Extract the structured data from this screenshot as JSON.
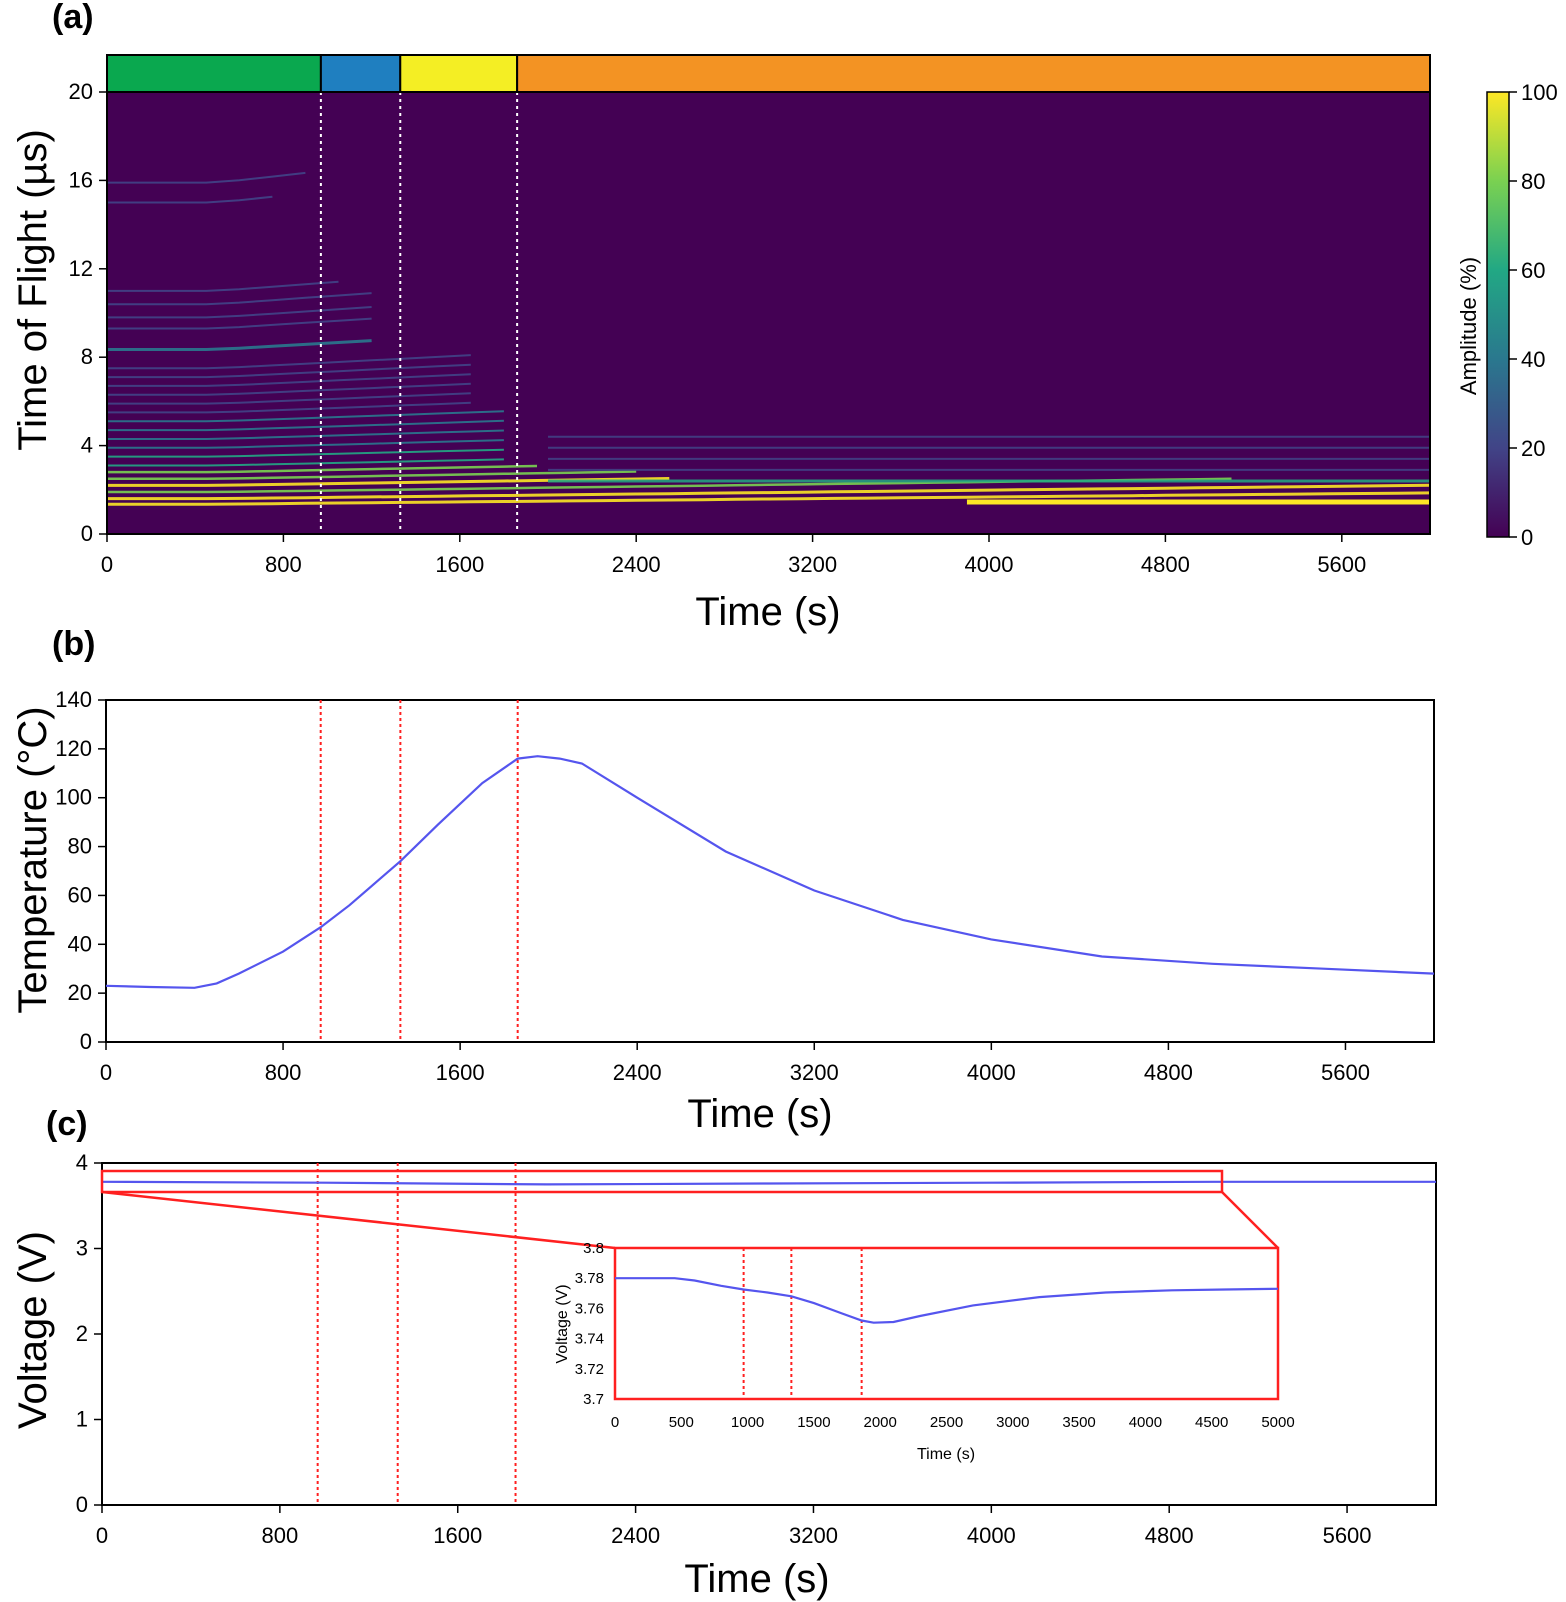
{
  "colors": {
    "background": "#440154",
    "line": "#5555ee",
    "marker_a": "#ffffff",
    "marker_bc": "#ff2020",
    "inset_frame": "#ff2020",
    "phase_bar": [
      "#0aa84f",
      "#1f7fc0",
      "#f4ee24",
      "#f39323"
    ]
  },
  "markers": [
    970,
    1330,
    1860
  ],
  "panel_a": {
    "label": "(a)",
    "xlabel": "Time (s)",
    "ylabel": "Time of Flight (µs)",
    "colorbar_label": "Amplitude (%)",
    "colorbar_ticks": [
      "0",
      "20",
      "40",
      "60",
      "80",
      "100"
    ],
    "colormap": "viridis",
    "xticks": [
      "0",
      "800",
      "1600",
      "2400",
      "3200",
      "4000",
      "4800",
      "5600"
    ],
    "yticks": [
      "0",
      "4",
      "8",
      "12",
      "16",
      "20"
    ]
  },
  "panel_b": {
    "label": "(b)",
    "xlabel": "Time (s)",
    "ylabel": "Temperature (°C)",
    "xticks": [
      "0",
      "800",
      "1600",
      "2400",
      "3200",
      "4000",
      "4800",
      "5600"
    ],
    "yticks": [
      "0",
      "20",
      "40",
      "60",
      "80",
      "100",
      "120",
      "140"
    ]
  },
  "panel_c": {
    "label": "(c)",
    "xlabel": "Time (s)",
    "ylabel": "Voltage (V)",
    "xticks": [
      "0",
      "800",
      "1600",
      "2400",
      "3200",
      "4000",
      "4800",
      "5600"
    ],
    "yticks": [
      "0",
      "1",
      "2",
      "3",
      "4"
    ],
    "inset": {
      "xlabel": "Time (s)",
      "ylabel": "Voltage (V)",
      "xticks": [
        "0",
        "500",
        "1000",
        "1500",
        "2000",
        "2500",
        "3000",
        "3500",
        "4000",
        "4500",
        "5000"
      ],
      "yticks": [
        "3.7",
        "3.72",
        "3.74",
        "3.76",
        "3.78",
        "3.8"
      ]
    }
  },
  "chart_data": [
    {
      "type": "heatmap",
      "panel": "a",
      "xlabel": "Time (s)",
      "ylabel": "Time of Flight (µs)",
      "xlim": [
        0,
        6000
      ],
      "ylim": [
        0,
        20
      ],
      "zlabel": "Amplitude (%)",
      "zlim": [
        0,
        100
      ]
    },
    {
      "type": "line",
      "panel": "b",
      "xlabel": "Time (s)",
      "ylabel": "Temperature (°C)",
      "xlim": [
        0,
        6000
      ],
      "ylim": [
        0,
        140
      ],
      "x": [
        0,
        200,
        400,
        500,
        600,
        800,
        970,
        1100,
        1330,
        1500,
        1700,
        1860,
        1950,
        2050,
        2150,
        2400,
        2800,
        3200,
        3600,
        4000,
        4500,
        5000,
        5500,
        6000
      ],
      "y": [
        23,
        22.5,
        22.2,
        24,
        28,
        37,
        47,
        56,
        74,
        89,
        106,
        116,
        117,
        116,
        114,
        100,
        78,
        62,
        50,
        42,
        35,
        32,
        30,
        28
      ]
    },
    {
      "type": "line",
      "panel": "c",
      "xlabel": "Time (s)",
      "ylabel": "Voltage (V)",
      "xlim": [
        0,
        6000
      ],
      "ylim": [
        0,
        4
      ],
      "x": [
        0,
        1000,
        2000,
        3000,
        4000,
        5000,
        6000
      ],
      "y": [
        3.78,
        3.77,
        3.75,
        3.76,
        3.77,
        3.78,
        3.78
      ]
    },
    {
      "type": "line",
      "panel": "c-inset",
      "xlabel": "Time (s)",
      "ylabel": "Voltage (V)",
      "xlim": [
        0,
        5000
      ],
      "ylim": [
        3.7,
        3.8
      ],
      "x": [
        0,
        250,
        450,
        600,
        800,
        970,
        1150,
        1330,
        1500,
        1700,
        1860,
        1950,
        2100,
        2300,
        2700,
        3200,
        3700,
        4200,
        4600,
        5000
      ],
      "y": [
        3.78,
        3.78,
        3.78,
        3.7785,
        3.775,
        3.7725,
        3.7705,
        3.768,
        3.7635,
        3.757,
        3.752,
        3.7505,
        3.751,
        3.755,
        3.762,
        3.7675,
        3.7705,
        3.772,
        3.7725,
        3.773
      ]
    }
  ]
}
